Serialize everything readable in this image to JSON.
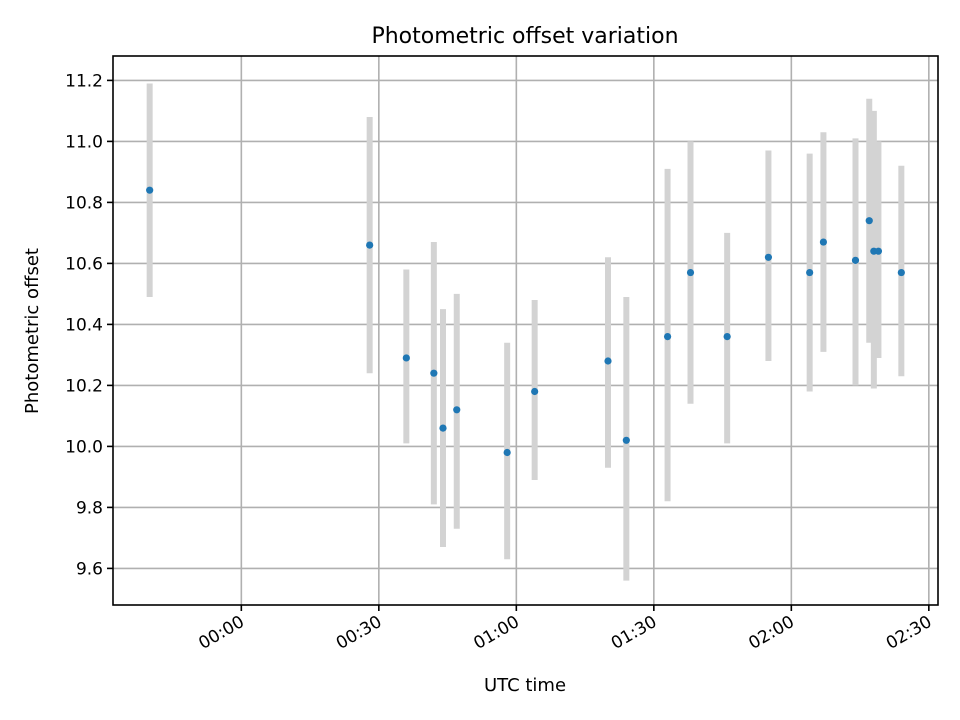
{
  "chart_data": {
    "type": "scatter",
    "title": "Photometric offset variation",
    "xlabel": "UTC time",
    "ylabel": "Photometric offset",
    "grid": true,
    "xlim": [
      "-00:28",
      "02:32"
    ],
    "ylim": [
      9.48,
      11.28
    ],
    "x_ticks": [
      "00:00",
      "00:30",
      "01:00",
      "01:30",
      "02:00",
      "02:30"
    ],
    "y_ticks": [
      "9.6",
      "9.8",
      "10.0",
      "10.2",
      "10.4",
      "10.6",
      "10.8",
      "11.0",
      "11.2"
    ],
    "series": [
      {
        "marker_color": "#1f77b4",
        "errorbar_color": "#d3d3d3",
        "points": [
          {
            "x": "-00:20",
            "y": 10.84,
            "ylo": 10.49,
            "yhi": 11.19
          },
          {
            "x": "00:28",
            "y": 10.66,
            "ylo": 10.24,
            "yhi": 11.08
          },
          {
            "x": "00:36",
            "y": 10.29,
            "ylo": 10.01,
            "yhi": 10.58
          },
          {
            "x": "00:42",
            "y": 10.24,
            "ylo": 9.81,
            "yhi": 10.67
          },
          {
            "x": "00:44",
            "y": 10.06,
            "ylo": 9.67,
            "yhi": 10.45
          },
          {
            "x": "00:47",
            "y": 10.12,
            "ylo": 9.73,
            "yhi": 10.5
          },
          {
            "x": "00:58",
            "y": 9.98,
            "ylo": 9.63,
            "yhi": 10.34
          },
          {
            "x": "01:04",
            "y": 10.18,
            "ylo": 9.89,
            "yhi": 10.48
          },
          {
            "x": "01:20",
            "y": 10.28,
            "ylo": 9.93,
            "yhi": 10.62
          },
          {
            "x": "01:24",
            "y": 10.02,
            "ylo": 9.56,
            "yhi": 10.49
          },
          {
            "x": "01:33",
            "y": 10.36,
            "ylo": 9.82,
            "yhi": 10.91
          },
          {
            "x": "01:38",
            "y": 10.57,
            "ylo": 10.14,
            "yhi": 11.0
          },
          {
            "x": "01:46",
            "y": 10.36,
            "ylo": 10.01,
            "yhi": 10.7
          },
          {
            "x": "01:55",
            "y": 10.62,
            "ylo": 10.28,
            "yhi": 10.97
          },
          {
            "x": "02:04",
            "y": 10.57,
            "ylo": 10.18,
            "yhi": 10.96
          },
          {
            "x": "02:07",
            "y": 10.67,
            "ylo": 10.31,
            "yhi": 11.03
          },
          {
            "x": "02:14",
            "y": 10.61,
            "ylo": 10.2,
            "yhi": 11.01
          },
          {
            "x": "02:17",
            "y": 10.74,
            "ylo": 10.34,
            "yhi": 11.14
          },
          {
            "x": "02:18",
            "y": 10.64,
            "ylo": 10.19,
            "yhi": 11.1
          },
          {
            "x": "02:19",
            "y": 10.64,
            "ylo": 10.29,
            "yhi": 11.0
          },
          {
            "x": "02:24",
            "y": 10.57,
            "ylo": 10.23,
            "yhi": 10.92
          }
        ]
      }
    ]
  }
}
